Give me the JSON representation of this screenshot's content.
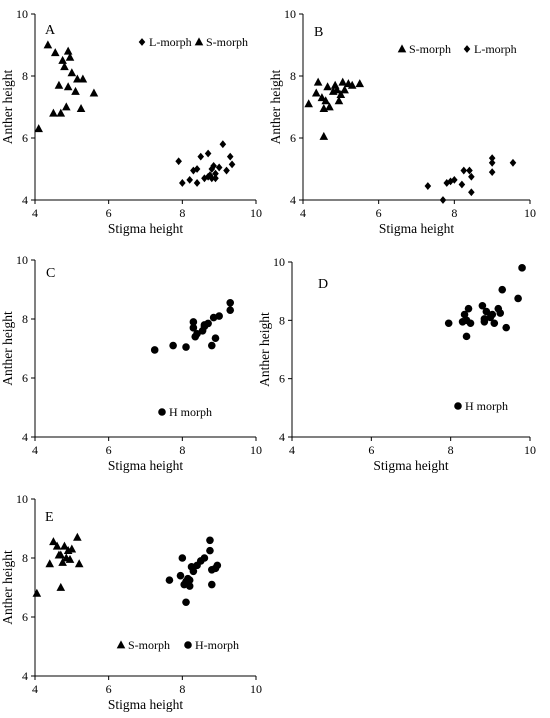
{
  "chart_data": [
    {
      "panel": "A",
      "type": "scatter",
      "xlabel": "Stigma height",
      "ylabel": "Anther height",
      "xlim": [
        4,
        10
      ],
      "ylim": [
        4,
        10
      ],
      "xticks": [
        "4",
        "6",
        "8",
        "10"
      ],
      "yticks": [
        "4",
        "6",
        "8",
        "10"
      ],
      "legend_placement": "top-right",
      "series": [
        {
          "name": "L-morph",
          "marker": "diamond",
          "x": [
            7.9,
            8.0,
            8.2,
            8.4,
            8.4,
            8.5,
            8.6,
            8.7,
            8.7,
            8.75,
            8.8,
            8.8,
            8.85,
            8.9,
            8.9,
            9.0,
            9.1,
            9.2,
            9.3,
            9.35,
            8.3
          ],
          "y": [
            5.25,
            4.55,
            4.65,
            4.55,
            5.0,
            5.4,
            4.7,
            4.75,
            5.5,
            4.8,
            5.0,
            4.7,
            5.1,
            4.85,
            4.7,
            5.05,
            5.8,
            4.95,
            5.4,
            5.15,
            4.95
          ]
        },
        {
          "name": "S-morph",
          "marker": "triangle",
          "x": [
            4.1,
            4.35,
            4.5,
            4.55,
            4.65,
            4.7,
            4.75,
            4.85,
            4.9,
            4.95,
            5.0,
            5.1,
            5.15,
            5.25,
            5.3,
            5.6,
            4.9,
            4.8
          ],
          "y": [
            6.3,
            9.0,
            6.8,
            8.75,
            7.7,
            6.8,
            8.5,
            7.0,
            8.8,
            8.6,
            8.1,
            7.5,
            7.9,
            6.95,
            7.9,
            7.45,
            7.65,
            8.3
          ]
        }
      ]
    },
    {
      "panel": "B",
      "type": "scatter",
      "xlabel": "Stigma height",
      "ylabel": "Anther height",
      "xlim": [
        4,
        10
      ],
      "ylim": [
        4,
        10
      ],
      "xticks": [
        "4",
        "6",
        "8",
        "10"
      ],
      "yticks": [
        "4",
        "6",
        "8",
        "10"
      ],
      "legend_placement": "top-right",
      "series": [
        {
          "name": "S-morph",
          "marker": "triangle",
          "x": [
            4.15,
            4.35,
            4.4,
            4.5,
            4.55,
            4.6,
            4.65,
            4.7,
            4.8,
            4.85,
            4.9,
            4.95,
            5.0,
            5.05,
            5.1,
            5.2,
            5.3,
            5.5,
            4.55
          ],
          "y": [
            7.1,
            7.45,
            7.8,
            7.3,
            6.95,
            7.2,
            7.65,
            7.0,
            7.5,
            7.7,
            7.55,
            7.2,
            7.4,
            7.8,
            7.55,
            7.75,
            7.7,
            7.75,
            6.05
          ]
        },
        {
          "name": "L-morph",
          "marker": "diamond",
          "x": [
            7.3,
            7.7,
            7.8,
            7.9,
            8.0,
            8.2,
            8.25,
            8.4,
            8.45,
            8.45,
            9.0,
            9.0,
            9.0,
            9.55
          ],
          "y": [
            4.45,
            4.0,
            4.55,
            4.6,
            4.65,
            4.5,
            4.95,
            4.95,
            4.25,
            4.75,
            5.35,
            5.2,
            4.9,
            5.2
          ]
        }
      ]
    },
    {
      "panel": "C",
      "type": "scatter",
      "xlabel": "Stigma height",
      "ylabel": "Anther height",
      "xlim": [
        4,
        10
      ],
      "ylim": [
        4,
        10
      ],
      "xticks": [
        "4",
        "6",
        "8",
        "10"
      ],
      "yticks": [
        "4",
        "6",
        "8",
        "10"
      ],
      "legend_placement": "bottom-center",
      "series": [
        {
          "name": "H morph",
          "marker": "circle",
          "x": [
            7.25,
            7.75,
            8.1,
            8.3,
            8.3,
            8.35,
            8.4,
            8.55,
            8.6,
            8.6,
            8.7,
            8.8,
            8.85,
            8.9,
            9.0,
            9.3,
            9.3
          ],
          "y": [
            6.95,
            7.1,
            7.05,
            7.9,
            7.7,
            7.4,
            7.5,
            7.6,
            7.8,
            7.75,
            7.85,
            7.1,
            8.05,
            7.35,
            8.1,
            8.55,
            8.3
          ]
        }
      ]
    },
    {
      "panel": "D",
      "type": "scatter",
      "xlabel": "Stigma height",
      "ylabel": "Anther height",
      "xlim": [
        4,
        10
      ],
      "ylim": [
        4,
        10
      ],
      "xticks": [
        "4",
        "6",
        "8",
        "10"
      ],
      "yticks": [
        "4",
        "6",
        "8",
        "10"
      ],
      "legend_placement": "bottom-center",
      "series": [
        {
          "name": "H morph",
          "marker": "circle",
          "x": [
            7.95,
            8.3,
            8.35,
            8.4,
            8.4,
            8.45,
            8.5,
            8.8,
            8.85,
            8.9,
            9.0,
            9.05,
            9.1,
            9.2,
            9.25,
            9.3,
            9.4,
            9.7,
            9.8,
            8.85
          ],
          "y": [
            7.9,
            7.95,
            8.2,
            7.45,
            8.0,
            8.4,
            7.9,
            8.5,
            7.95,
            8.3,
            8.1,
            8.2,
            7.9,
            8.4,
            8.25,
            9.05,
            7.75,
            8.75,
            9.8,
            8.05
          ]
        }
      ]
    },
    {
      "panel": "E",
      "type": "scatter",
      "xlabel": "Stigma height",
      "ylabel": "Anther height",
      "xlim": [
        4,
        10
      ],
      "ylim": [
        4,
        10
      ],
      "xticks": [
        "4",
        "6",
        "8",
        "10"
      ],
      "yticks": [
        "4",
        "6",
        "8",
        "10"
      ],
      "legend_placement": "bottom-center",
      "series": [
        {
          "name": "S-morph",
          "marker": "triangle",
          "x": [
            4.05,
            4.4,
            4.5,
            4.6,
            4.65,
            4.7,
            4.75,
            4.8,
            4.85,
            4.9,
            4.95,
            5.0,
            5.15,
            5.2,
            4.7
          ],
          "y": [
            6.8,
            7.8,
            8.55,
            8.4,
            8.1,
            8.1,
            7.85,
            8.4,
            8.0,
            8.25,
            7.95,
            8.3,
            8.7,
            7.8,
            7.0
          ]
        },
        {
          "name": "H-morph",
          "marker": "circle",
          "x": [
            7.65,
            7.95,
            8.0,
            8.05,
            8.1,
            8.1,
            8.15,
            8.2,
            8.25,
            8.3,
            8.4,
            8.5,
            8.6,
            8.75,
            8.75,
            8.8,
            8.9,
            8.95,
            8.8,
            8.2
          ],
          "y": [
            7.25,
            7.4,
            8.0,
            7.1,
            7.2,
            6.5,
            7.3,
            7.05,
            7.7,
            7.55,
            7.75,
            7.9,
            8.0,
            8.25,
            8.6,
            7.6,
            7.65,
            7.75,
            7.1,
            7.25
          ]
        }
      ]
    }
  ]
}
